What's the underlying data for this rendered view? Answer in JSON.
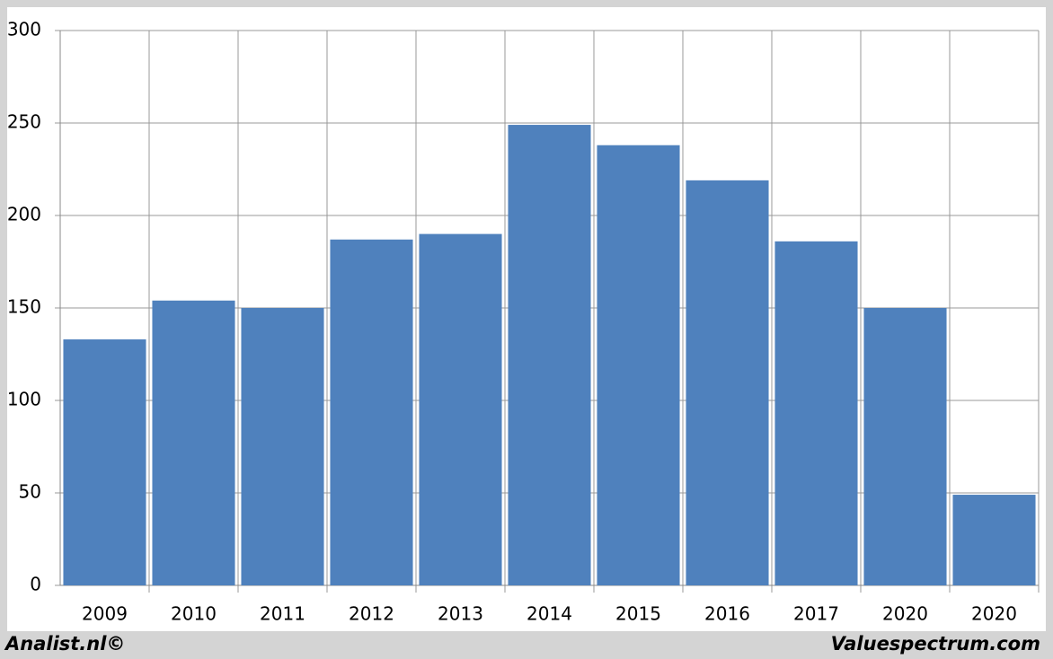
{
  "chart_data": {
    "type": "bar",
    "categories": [
      "2009",
      "2010",
      "2011",
      "2012",
      "2013",
      "2014",
      "2015",
      "2016",
      "2017",
      "2020",
      "2020"
    ],
    "values": [
      133,
      154,
      150,
      187,
      190,
      249,
      238,
      219,
      186,
      150,
      49
    ],
    "color": "#4f81bd",
    "ylim": [
      0,
      300
    ],
    "yticks": [
      0,
      50,
      100,
      150,
      200,
      250,
      300
    ],
    "grid": true,
    "footer_left": "Analist.nl©",
    "footer_right": "Valuespectrum.com"
  }
}
